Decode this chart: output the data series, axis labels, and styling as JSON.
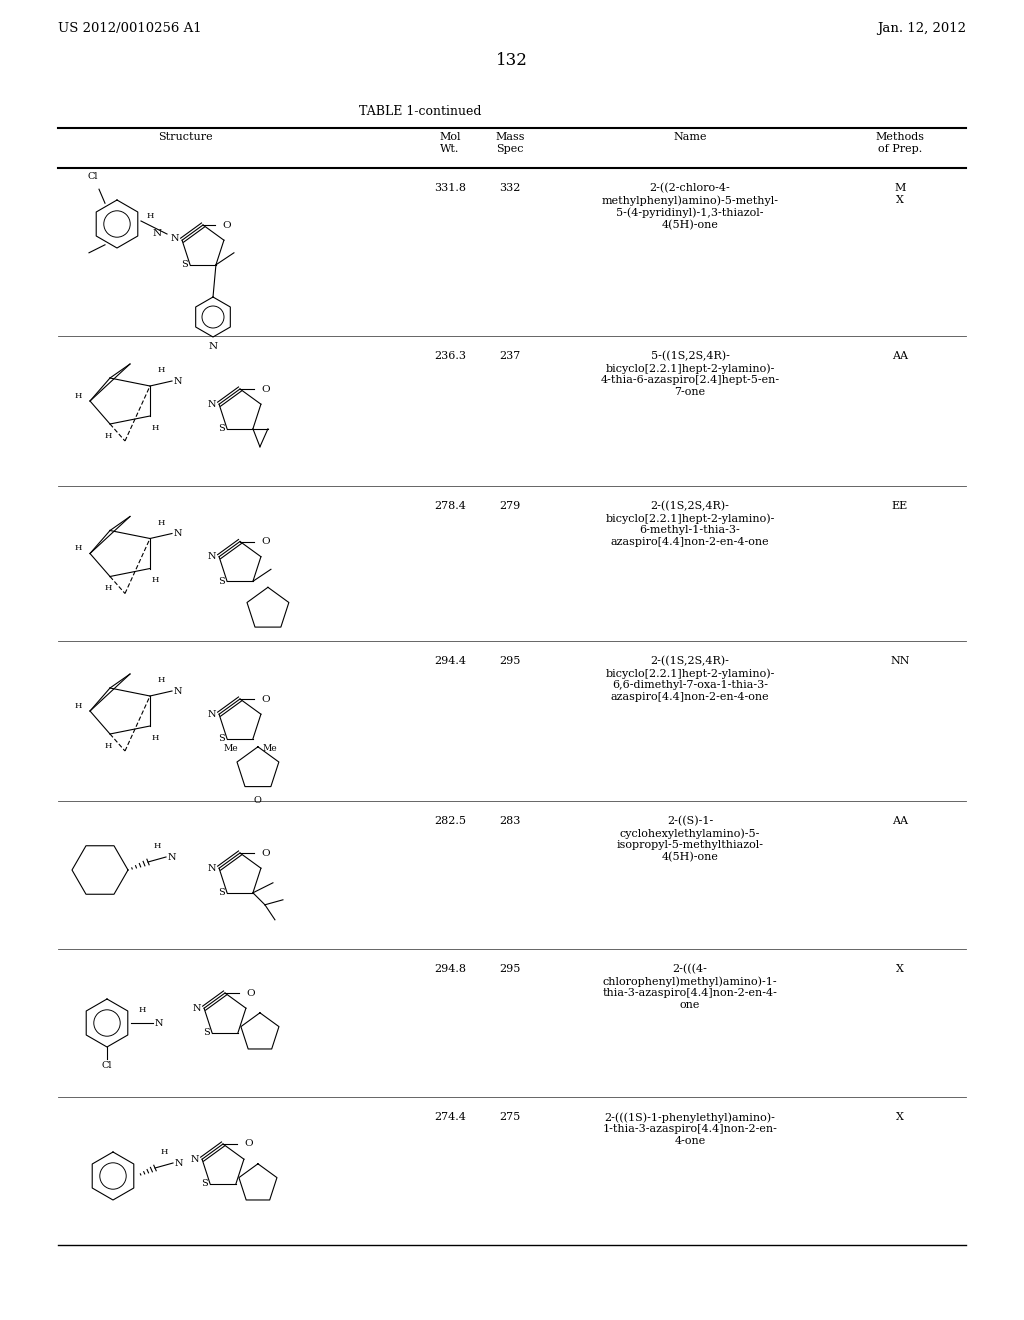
{
  "page_number": "132",
  "patent_left": "US 2012/0010256 A1",
  "patent_right": "Jan. 12, 2012",
  "table_title": "TABLE 1-continued",
  "rows": [
    {
      "mol_wt": "331.8",
      "mass_spec": "332",
      "name": "2-((2-chloro-4-\nmethylphenyl)amino)-5-methyl-\n5-(4-pyridinyl)-1,3-thiazol-\n4(5H)-one",
      "methods": "M\nX"
    },
    {
      "mol_wt": "236.3",
      "mass_spec": "237",
      "name": "5-((1S,2S,4R)-\nbicyclo[2.2.1]hept-2-ylamino)-\n4-thia-6-azaspiro[2.4]hept-5-en-\n7-one",
      "methods": "AA"
    },
    {
      "mol_wt": "278.4",
      "mass_spec": "279",
      "name": "2-((1S,2S,4R)-\nbicyclo[2.2.1]hept-2-ylamino)-\n6-methyl-1-thia-3-\nazaspiro[4.4]non-2-en-4-one",
      "methods": "EE"
    },
    {
      "mol_wt": "294.4",
      "mass_spec": "295",
      "name": "2-((1S,2S,4R)-\nbicyclo[2.2.1]hept-2-ylamino)-\n6,6-dimethyl-7-oxa-1-thia-3-\nazaspiro[4.4]non-2-en-4-one",
      "methods": "NN"
    },
    {
      "mol_wt": "282.5",
      "mass_spec": "283",
      "name": "2-((S)-1-\ncyclohexylethylamino)-5-\nisopropyl-5-methylthiazol-\n4(5H)-one",
      "methods": "AA"
    },
    {
      "mol_wt": "294.8",
      "mass_spec": "295",
      "name": "2-(((4-\nchlorophenyl)methyl)amino)-1-\nthia-3-azaspiro[4.4]non-2-en-4-\none",
      "methods": "X"
    },
    {
      "mol_wt": "274.4",
      "mass_spec": "275",
      "name": "2-(((1S)-1-phenylethyl)amino)-\n1-thia-3-azaspiro[4.4]non-2-en-\n4-one",
      "methods": "X"
    }
  ],
  "bg_color": "#ffffff",
  "text_color": "#000000",
  "font_size_patent": 9.5,
  "font_size_page": 12,
  "font_size_table_title": 9,
  "font_size_header": 8,
  "font_size_body": 8
}
